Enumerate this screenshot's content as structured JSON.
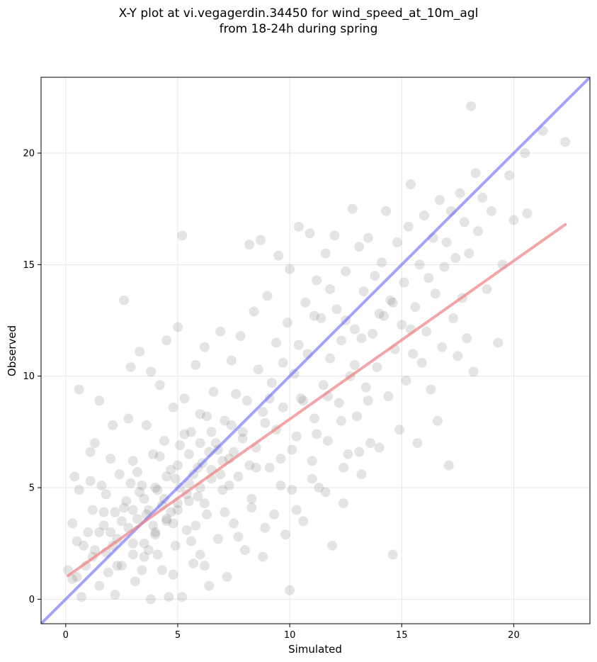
{
  "chart_data": {
    "type": "scatter",
    "title_lines": [
      "X-Y plot at vi.vegagerdin.34450 for wind_speed_at_10m_agl",
      "from 18-24h during spring"
    ],
    "xlabel": "Simulated",
    "ylabel": "Observed",
    "xlim": [
      -1.1,
      23.4
    ],
    "ylim": [
      -1.1,
      23.4
    ],
    "xticks": [
      0,
      5,
      10,
      15,
      20
    ],
    "yticks": [
      0,
      5,
      10,
      15,
      20
    ],
    "grid": true,
    "point_color": "#555555",
    "point_opacity": 0.16,
    "reference_line": {
      "from": [
        -1.1,
        -1.1
      ],
      "to": [
        23.4,
        23.4
      ],
      "color": "#6666ff"
    },
    "fit_line": {
      "from": [
        0.1,
        1.05
      ],
      "to": [
        22.3,
        16.8
      ],
      "color": "#f08080"
    },
    "points": [
      [
        0.1,
        1.3
      ],
      [
        0.3,
        0.9
      ],
      [
        0.3,
        3.4
      ],
      [
        0.4,
        5.5
      ],
      [
        0.5,
        1.0
      ],
      [
        0.5,
        2.6
      ],
      [
        0.6,
        4.9
      ],
      [
        0.6,
        9.4
      ],
      [
        0.7,
        0.1
      ],
      [
        0.9,
        1.5
      ],
      [
        1.0,
        3.0
      ],
      [
        1.1,
        5.3
      ],
      [
        1.1,
        6.6
      ],
      [
        1.2,
        4.0
      ],
      [
        1.3,
        2.2
      ],
      [
        1.3,
        7.0
      ],
      [
        1.5,
        0.6
      ],
      [
        1.5,
        8.9
      ],
      [
        1.6,
        5.1
      ],
      [
        1.7,
        3.3
      ],
      [
        1.8,
        2.1
      ],
      [
        1.8,
        4.7
      ],
      [
        1.9,
        1.2
      ],
      [
        2.0,
        6.3
      ],
      [
        2.1,
        7.8
      ],
      [
        2.2,
        0.2
      ],
      [
        2.2,
        3.9
      ],
      [
        2.3,
        2.7
      ],
      [
        2.4,
        5.6
      ],
      [
        2.5,
        1.5
      ],
      [
        2.6,
        13.4
      ],
      [
        2.7,
        4.4
      ],
      [
        2.8,
        8.1
      ],
      [
        2.9,
        10.4
      ],
      [
        3.0,
        2.5
      ],
      [
        3.0,
        6.2
      ],
      [
        3.1,
        0.8
      ],
      [
        3.2,
        3.6
      ],
      [
        3.3,
        11.1
      ],
      [
        3.4,
        5.1
      ],
      [
        3.5,
        1.9
      ],
      [
        3.6,
        7.8
      ],
      [
        3.7,
        4.0
      ],
      [
        3.8,
        0.0
      ],
      [
        3.8,
        10.2
      ],
      [
        3.9,
        6.5
      ],
      [
        4.0,
        2.9
      ],
      [
        4.1,
        4.9
      ],
      [
        4.2,
        9.6
      ],
      [
        4.3,
        1.3
      ],
      [
        4.4,
        7.1
      ],
      [
        4.5,
        11.6
      ],
      [
        4.5,
        3.5
      ],
      [
        4.6,
        0.1
      ],
      [
        4.7,
        5.8
      ],
      [
        4.8,
        8.6
      ],
      [
        4.9,
        2.4
      ],
      [
        5.0,
        4.3
      ],
      [
        5.0,
        12.2
      ],
      [
        5.1,
        6.9
      ],
      [
        5.2,
        0.1
      ],
      [
        5.2,
        16.3
      ],
      [
        5.3,
        9.0
      ],
      [
        5.4,
        3.1
      ],
      [
        5.5,
        5.2
      ],
      [
        5.6,
        7.5
      ],
      [
        5.7,
        1.6
      ],
      [
        5.8,
        10.5
      ],
      [
        5.9,
        4.6
      ],
      [
        6.0,
        2.0
      ],
      [
        6.0,
        8.3
      ],
      [
        6.1,
        6.1
      ],
      [
        6.2,
        11.3
      ],
      [
        6.3,
        3.8
      ],
      [
        6.4,
        0.6
      ],
      [
        6.5,
        5.4
      ],
      [
        6.6,
        9.3
      ],
      [
        6.7,
        7.0
      ],
      [
        6.8,
        2.7
      ],
      [
        6.9,
        12.0
      ],
      [
        7.0,
        4.9
      ],
      [
        7.1,
        8.0
      ],
      [
        7.2,
        1.0
      ],
      [
        7.3,
        6.3
      ],
      [
        7.4,
        10.7
      ],
      [
        7.5,
        3.4
      ],
      [
        7.6,
        9.2
      ],
      [
        7.7,
        5.5
      ],
      [
        7.8,
        11.8
      ],
      [
        7.9,
        7.2
      ],
      [
        8.0,
        2.2
      ],
      [
        8.1,
        8.9
      ],
      [
        8.2,
        15.9
      ],
      [
        8.3,
        4.5
      ],
      [
        8.4,
        12.9
      ],
      [
        8.5,
        6.8
      ],
      [
        8.6,
        10.3
      ],
      [
        8.7,
        16.1
      ],
      [
        8.8,
        1.9
      ],
      [
        8.9,
        7.9
      ],
      [
        9.0,
        13.6
      ],
      [
        9.1,
        5.9
      ],
      [
        9.2,
        9.7
      ],
      [
        9.3,
        3.8
      ],
      [
        9.4,
        11.5
      ],
      [
        9.5,
        15.4
      ],
      [
        9.6,
        6.3
      ],
      [
        9.7,
        8.6
      ],
      [
        9.8,
        2.9
      ],
      [
        9.9,
        12.4
      ],
      [
        10.0,
        0.4
      ],
      [
        10.0,
        14.8
      ],
      [
        10.1,
        4.9
      ],
      [
        10.2,
        10.1
      ],
      [
        10.3,
        7.3
      ],
      [
        10.4,
        16.7
      ],
      [
        10.5,
        9.0
      ],
      [
        10.6,
        3.5
      ],
      [
        10.7,
        13.3
      ],
      [
        10.8,
        11.0
      ],
      [
        10.9,
        16.4
      ],
      [
        11.0,
        6.2
      ],
      [
        11.1,
        8.1
      ],
      [
        11.2,
        14.3
      ],
      [
        11.3,
        5.0
      ],
      [
        11.4,
        12.6
      ],
      [
        11.5,
        9.6
      ],
      [
        11.6,
        15.5
      ],
      [
        11.7,
        7.1
      ],
      [
        11.8,
        10.8
      ],
      [
        11.9,
        2.4
      ],
      [
        12.0,
        16.3
      ],
      [
        12.1,
        13.0
      ],
      [
        12.2,
        8.8
      ],
      [
        12.3,
        11.6
      ],
      [
        12.4,
        4.3
      ],
      [
        12.5,
        14.7
      ],
      [
        12.6,
        6.5
      ],
      [
        12.7,
        10.0
      ],
      [
        12.8,
        17.5
      ],
      [
        12.9,
        12.1
      ],
      [
        13.0,
        8.2
      ],
      [
        13.1,
        15.8
      ],
      [
        13.2,
        5.6
      ],
      [
        13.3,
        13.8
      ],
      [
        13.4,
        9.5
      ],
      [
        13.5,
        16.2
      ],
      [
        13.6,
        7.0
      ],
      [
        13.7,
        11.9
      ],
      [
        13.8,
        14.5
      ],
      [
        13.9,
        10.4
      ],
      [
        14.0,
        6.8
      ],
      [
        14.1,
        15.1
      ],
      [
        14.2,
        12.7
      ],
      [
        14.3,
        17.4
      ],
      [
        14.4,
        9.1
      ],
      [
        14.5,
        13.4
      ],
      [
        14.6,
        2.0
      ],
      [
        14.7,
        11.2
      ],
      [
        14.8,
        16.0
      ],
      [
        14.9,
        7.6
      ],
      [
        15.0,
        12.3
      ],
      [
        15.1,
        14.2
      ],
      [
        15.2,
        9.8
      ],
      [
        15.3,
        16.7
      ],
      [
        15.4,
        18.6
      ],
      [
        15.5,
        11.0
      ],
      [
        15.6,
        13.1
      ],
      [
        15.7,
        7.0
      ],
      [
        15.8,
        15.0
      ],
      [
        15.9,
        10.6
      ],
      [
        16.0,
        17.2
      ],
      [
        16.1,
        12.0
      ],
      [
        16.2,
        14.4
      ],
      [
        16.3,
        9.4
      ],
      [
        16.4,
        16.2
      ],
      [
        16.5,
        13.7
      ],
      [
        16.6,
        8.0
      ],
      [
        16.7,
        17.9
      ],
      [
        16.8,
        11.3
      ],
      [
        16.9,
        14.9
      ],
      [
        17.0,
        16.0
      ],
      [
        17.1,
        6.0
      ],
      [
        17.2,
        17.4
      ],
      [
        17.3,
        12.6
      ],
      [
        17.4,
        15.3
      ],
      [
        17.5,
        10.9
      ],
      [
        17.6,
        18.2
      ],
      [
        17.7,
        13.5
      ],
      [
        17.8,
        16.9
      ],
      [
        17.9,
        11.7
      ],
      [
        18.0,
        15.5
      ],
      [
        18.1,
        22.1
      ],
      [
        18.2,
        10.2
      ],
      [
        18.3,
        19.1
      ],
      [
        18.4,
        16.5
      ],
      [
        18.6,
        18.0
      ],
      [
        18.8,
        13.9
      ],
      [
        19.0,
        17.4
      ],
      [
        19.3,
        11.5
      ],
      [
        19.5,
        15.0
      ],
      [
        19.8,
        19.0
      ],
      [
        20.0,
        17.0
      ],
      [
        20.5,
        20.0
      ],
      [
        20.6,
        17.3
      ],
      [
        21.3,
        21.0
      ],
      [
        22.3,
        20.5
      ],
      [
        2.0,
        3.0
      ],
      [
        2.5,
        3.5
      ],
      [
        3.0,
        4.0
      ],
      [
        3.5,
        4.5
      ],
      [
        4.0,
        5.0
      ],
      [
        4.5,
        5.5
      ],
      [
        5.0,
        6.0
      ],
      [
        5.5,
        6.5
      ],
      [
        6.0,
        7.0
      ],
      [
        6.5,
        7.5
      ],
      [
        3.0,
        2.0
      ],
      [
        3.5,
        2.5
      ],
      [
        4.0,
        3.0
      ],
      [
        4.5,
        3.6
      ],
      [
        5.0,
        4.0
      ],
      [
        5.5,
        4.4
      ],
      [
        6.0,
        5.0
      ],
      [
        6.5,
        5.8
      ],
      [
        7.0,
        6.2
      ],
      [
        7.5,
        6.6
      ],
      [
        2.8,
        3.2
      ],
      [
        3.3,
        4.8
      ],
      [
        3.9,
        3.3
      ],
      [
        4.4,
        4.5
      ],
      [
        4.9,
        5.4
      ],
      [
        5.4,
        4.7
      ],
      [
        5.9,
        5.9
      ],
      [
        6.4,
        6.6
      ],
      [
        6.9,
        5.6
      ],
      [
        7.4,
        7.8
      ],
      [
        1.5,
        3.0
      ],
      [
        2.1,
        2.4
      ],
      [
        2.6,
        4.1
      ],
      [
        3.2,
        5.7
      ],
      [
        3.7,
        2.2
      ],
      [
        4.2,
        6.4
      ],
      [
        4.7,
        3.9
      ],
      [
        5.3,
        7.4
      ],
      [
        5.8,
        3.3
      ],
      [
        6.3,
        8.2
      ],
      [
        8.2,
        6.0
      ],
      [
        8.8,
        8.4
      ],
      [
        9.4,
        7.6
      ],
      [
        10.1,
        6.7
      ],
      [
        10.6,
        8.9
      ],
      [
        11.2,
        7.4
      ],
      [
        11.7,
        9.1
      ],
      [
        12.3,
        8.0
      ],
      [
        12.9,
        10.5
      ],
      [
        13.5,
        8.9
      ],
      [
        0.8,
        2.4
      ],
      [
        1.2,
        1.9
      ],
      [
        1.7,
        3.9
      ],
      [
        2.3,
        1.5
      ],
      [
        2.9,
        5.2
      ],
      [
        3.4,
        1.3
      ],
      [
        4.1,
        2.0
      ],
      [
        4.8,
        1.1
      ],
      [
        5.6,
        2.6
      ],
      [
        6.2,
        1.5
      ],
      [
        7.1,
        3.9
      ],
      [
        7.7,
        2.8
      ],
      [
        8.3,
        4.1
      ],
      [
        8.9,
        3.2
      ],
      [
        9.6,
        5.1
      ],
      [
        10.3,
        4.0
      ],
      [
        11.0,
        5.4
      ],
      [
        11.6,
        4.8
      ],
      [
        12.4,
        5.9
      ],
      [
        13.1,
        6.6
      ],
      [
        3.6,
        3.8
      ],
      [
        4.3,
        4.2
      ],
      [
        4.8,
        3.4
      ],
      [
        5.1,
        5.0
      ],
      [
        5.7,
        5.6
      ],
      [
        6.2,
        4.3
      ],
      [
        6.8,
        6.7
      ],
      [
        7.3,
        5.1
      ],
      [
        7.9,
        7.5
      ],
      [
        8.5,
        5.9
      ],
      [
        9.1,
        9.0
      ],
      [
        9.7,
        10.6
      ],
      [
        10.4,
        11.4
      ],
      [
        11.1,
        12.7
      ],
      [
        11.8,
        13.9
      ],
      [
        12.5,
        12.5
      ],
      [
        13.2,
        11.7
      ],
      [
        14.0,
        12.8
      ],
      [
        14.6,
        13.3
      ],
      [
        15.4,
        12.1
      ]
    ]
  }
}
